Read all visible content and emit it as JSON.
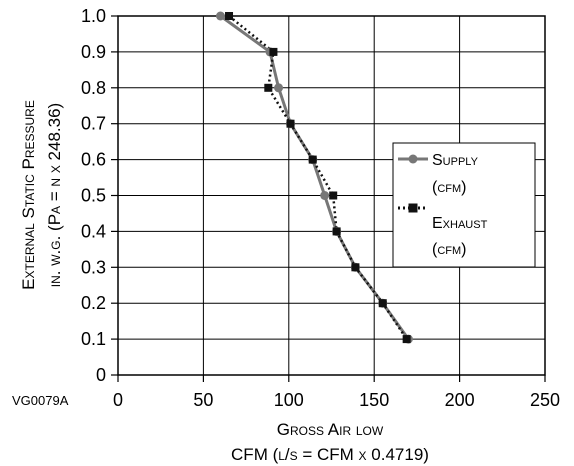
{
  "chart_data": {
    "type": "line",
    "figure_code": "VG0079A",
    "xlabel": "Gross Air low",
    "xlabel_sub": "CFM (l/s = CFM x 0.4719)",
    "ylabel": "External Static Pressure",
    "ylabel_sub": "in. w.g. (Pa = n x 248.36)",
    "xlim": [
      0,
      250
    ],
    "ylim": [
      0,
      1.0
    ],
    "xticks": [
      "0",
      "50",
      "100",
      "150",
      "200",
      "250"
    ],
    "yticks": [
      "0",
      "0.1",
      "0.2",
      "0.3",
      "0.4",
      "0.5",
      "0.6",
      "0.7",
      "0.8",
      "0.9",
      "1.0"
    ],
    "grid": true,
    "legend": "right",
    "series": [
      {
        "name": "Supply (cfm)",
        "name_line1": "Supply",
        "name_line2": "(cfm)",
        "color": "#777777",
        "marker": "circle",
        "dash": "solid",
        "x": [
          60,
          89,
          94,
          101,
          114,
          121,
          128,
          139,
          155,
          170
        ],
        "y": [
          1.0,
          0.9,
          0.8,
          0.7,
          0.6,
          0.5,
          0.4,
          0.3,
          0.2,
          0.1
        ]
      },
      {
        "name": "Exhaust (cfm)",
        "name_line1": "Exhaust",
        "name_line2": "(cfm)",
        "color": "#111111",
        "marker": "square",
        "dash": "dotted",
        "x": [
          65,
          91,
          88,
          101,
          114,
          126,
          128,
          139,
          155,
          169
        ],
        "y": [
          1.0,
          0.9,
          0.8,
          0.7,
          0.6,
          0.5,
          0.4,
          0.3,
          0.2,
          0.1
        ]
      }
    ]
  }
}
